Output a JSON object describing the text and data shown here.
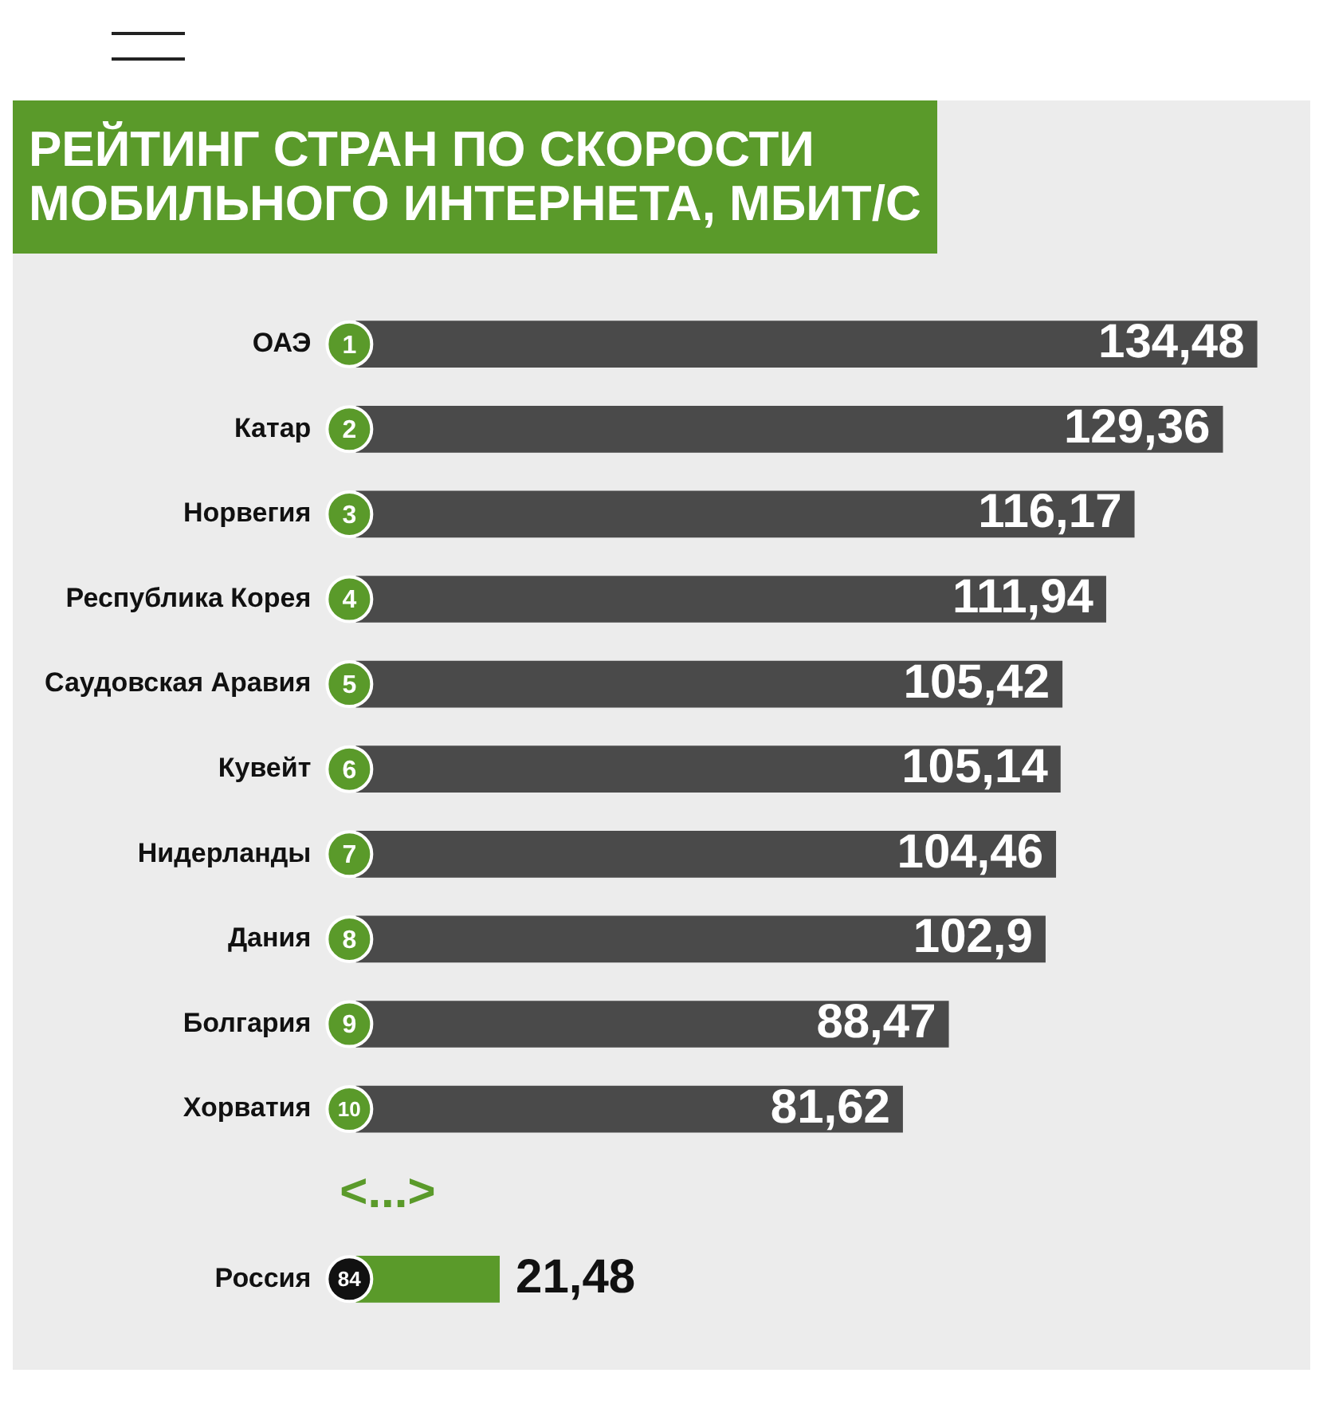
{
  "chart_data": {
    "type": "bar",
    "orientation": "horizontal",
    "title": "РЕЙТИНГ СТРАН ПО СКОРОСТИ МОБИЛЬНОГО ИНТЕРНЕТА, МБИТ/С",
    "categories": [
      "ОАЭ",
      "Катар",
      "Норвегия",
      "Республика Корея",
      "Саудовская Аравия",
      "Кувейт",
      "Нидерланды",
      "Дания",
      "Болгария",
      "Хорватия",
      null,
      "Россия"
    ],
    "values": [
      134.48,
      129.36,
      116.17,
      111.94,
      105.42,
      105.14,
      104.46,
      102.9,
      88.47,
      81.62,
      null,
      21.48
    ],
    "value_labels": [
      "134,48",
      "129,36",
      "116,17",
      "111,94",
      "105,42",
      "105,14",
      "104,46",
      "102,9",
      "88,47",
      "81,62",
      null,
      "21,48"
    ],
    "colors": [
      "#4a4a4a",
      "#4a4a4a",
      "#4a4a4a",
      "#4a4a4a",
      "#4a4a4a",
      "#4a4a4a",
      "#4a4a4a",
      "#4a4a4a",
      "#4a4a4a",
      "#4a4a4a",
      "#4a4a4a",
      "#5a9a2a"
    ],
    "annotations": [
      {
        "text": "1",
        "y": "ОАЭ"
      },
      {
        "text": "2",
        "y": "Катар"
      },
      {
        "text": "3",
        "y": "Норвегия"
      },
      {
        "text": "4",
        "y": "Республика Корея"
      },
      {
        "text": "5",
        "y": "Саудовская Аравия"
      },
      {
        "text": "6",
        "y": "Кувейт"
      },
      {
        "text": "7",
        "y": "Нидерланды"
      },
      {
        "text": "8",
        "y": "Дания"
      },
      {
        "text": "9",
        "y": "Болгария"
      },
      {
        "text": "10",
        "y": "Хорватия"
      },
      {
        "text": "84",
        "y": "Россия"
      },
      "<...>"
    ],
    "grid": false,
    "legend": false
  }
}
